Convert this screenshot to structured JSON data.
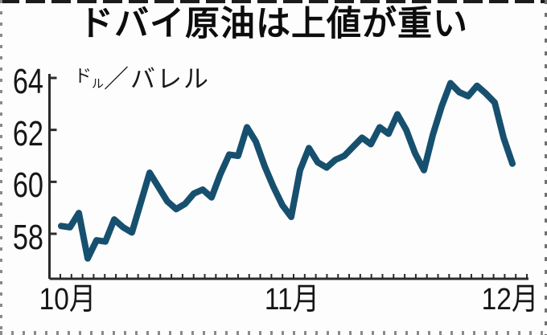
{
  "figure": {
    "title": "ドバイ原油は上値が重い",
    "unit_label": {
      "small": "ド",
      "small_sub": "ル",
      "rest": "／バレル"
    }
  },
  "chart_data": {
    "type": "line",
    "title": "ドバイ原油は上値が重い",
    "ylabel": "ドル／バレル",
    "xlabel": "",
    "y_ticks": [
      58,
      60,
      62,
      64
    ],
    "ylim": [
      56.3,
      64.3
    ],
    "x_tick_labels": [
      "10月",
      "11月",
      "12月"
    ],
    "x_minor_tick_count": 43,
    "grid": false,
    "legend": "none",
    "line_color": "#17506f",
    "axis_color": "#2a2a2a",
    "values": [
      58.3,
      58.25,
      58.8,
      57.05,
      57.75,
      57.7,
      58.55,
      58.25,
      58.05,
      59.2,
      60.35,
      59.8,
      59.25,
      58.95,
      59.15,
      59.55,
      59.7,
      59.4,
      60.3,
      61.05,
      61.0,
      62.1,
      61.55,
      60.6,
      59.8,
      59.1,
      58.65,
      60.45,
      61.3,
      60.75,
      60.55,
      60.85,
      61.0,
      61.35,
      61.7,
      61.45,
      62.1,
      61.85,
      62.6,
      62.0,
      61.1,
      60.45,
      61.8,
      62.9,
      63.8,
      63.45,
      63.3,
      63.7,
      63.4,
      63.05,
      61.7,
      60.7
    ]
  }
}
